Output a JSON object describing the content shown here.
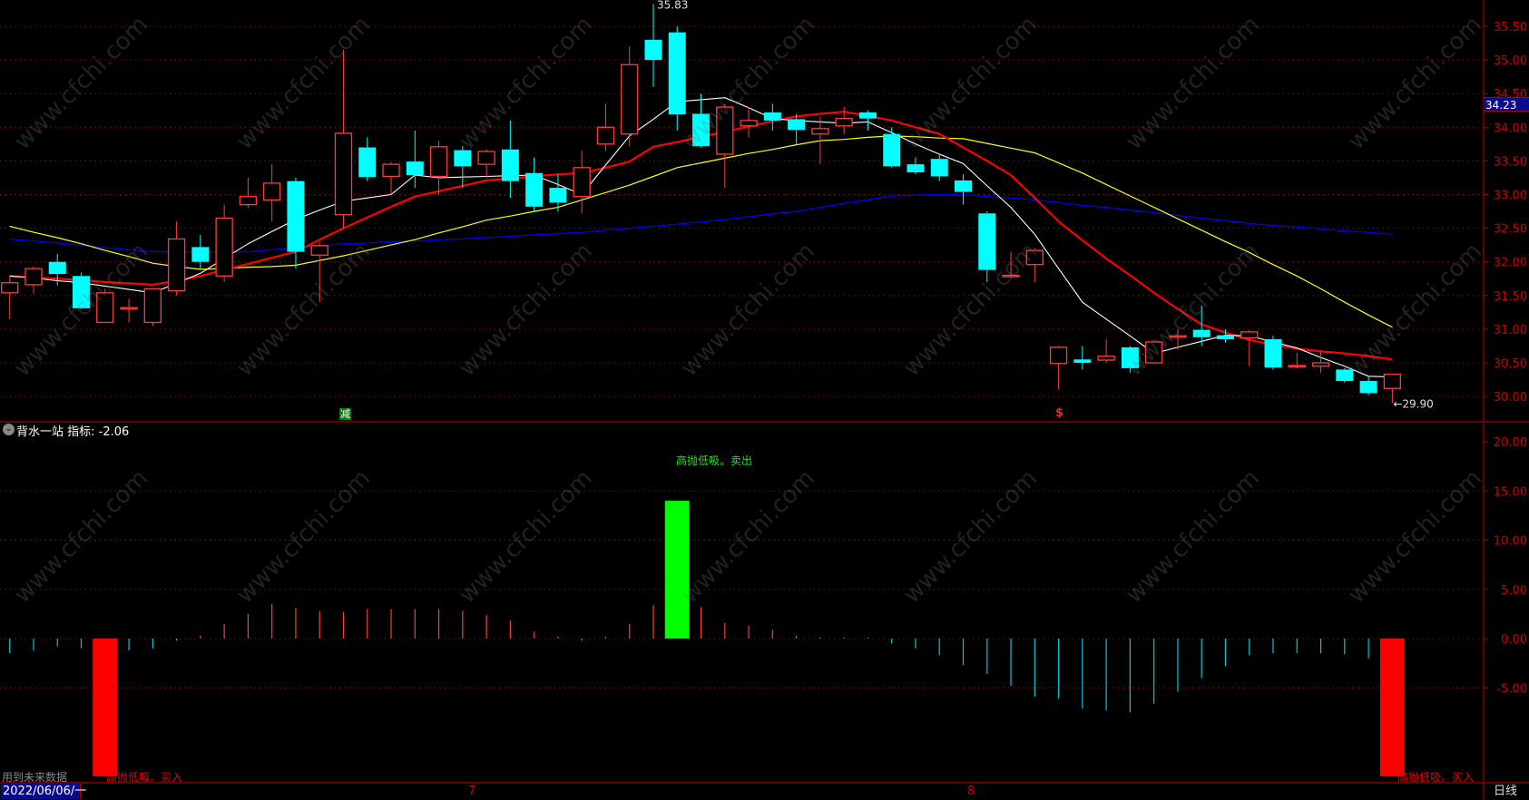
{
  "indicator_panel": {
    "name": "背水一站",
    "label": "指标:",
    "value": "-2.06",
    "title": "背水一站 指标: -2.06"
  },
  "watermark": "www.cfchi.com",
  "footer": {
    "date": "2022/06/06/一",
    "month_labels": [
      "7",
      "8"
    ],
    "period": "日线",
    "future_data_note": "用到未来数据"
  },
  "last_price": "34.23",
  "high_label": "35.83",
  "low_label": "←29.90",
  "markers": {
    "green_marker_text": "减",
    "red_marker_icon": "dollar-s-icon"
  },
  "signals": {
    "buy": "高抛低吸。买入",
    "sell": "高抛低吸。卖出"
  },
  "colors": {
    "up": "#ff3c3c",
    "down": "#00ffff",
    "ma5": "#ffffff",
    "ma10": "#ff0000",
    "ma20": "#ffff00",
    "ma60": "#0000ff",
    "axis": "#c80000",
    "buy_bar": "#ff0000",
    "sell_bar": "#00ff00",
    "neg_line": "#00c8d8"
  },
  "chart_data": [
    {
      "type": "candlestick",
      "ylim": [
        29.85,
        35.9
      ],
      "y_ticks": [
        "30.00",
        "30.50",
        "31.00",
        "31.50",
        "32.00",
        "32.50",
        "33.00",
        "33.50",
        "34.00",
        "34.50",
        "35.00",
        "35.50"
      ],
      "grid": true,
      "ohlc": [
        [
          31.54,
          31.8,
          31.15,
          31.69
        ],
        [
          31.66,
          31.93,
          31.53,
          31.9
        ],
        [
          32.0,
          32.12,
          31.65,
          31.82
        ],
        [
          31.79,
          31.84,
          31.3,
          31.31
        ],
        [
          31.1,
          31.6,
          31.1,
          31.54
        ],
        [
          31.3,
          31.45,
          31.1,
          31.32
        ],
        [
          31.1,
          31.6,
          31.05,
          31.6
        ],
        [
          31.57,
          32.6,
          31.5,
          32.34
        ],
        [
          32.22,
          32.4,
          31.9,
          32.0
        ],
        [
          31.79,
          32.85,
          31.7,
          32.65
        ],
        [
          32.85,
          33.25,
          32.8,
          32.97
        ],
        [
          32.92,
          33.45,
          32.6,
          33.17
        ],
        [
          33.2,
          33.25,
          31.9,
          32.15
        ],
        [
          32.1,
          32.3,
          31.4,
          32.24
        ],
        [
          32.7,
          35.15,
          32.5,
          33.91
        ],
        [
          33.7,
          33.85,
          33.2,
          33.26
        ],
        [
          33.27,
          33.48,
          33.0,
          33.45
        ],
        [
          33.49,
          33.95,
          33.1,
          33.29
        ],
        [
          33.27,
          33.8,
          33.0,
          33.71
        ],
        [
          33.66,
          33.72,
          33.1,
          33.42
        ],
        [
          33.45,
          33.67,
          33.25,
          33.64
        ],
        [
          33.67,
          34.1,
          32.95,
          33.2
        ],
        [
          33.32,
          33.55,
          32.75,
          32.82
        ],
        [
          33.1,
          33.3,
          32.75,
          32.88
        ],
        [
          32.97,
          33.65,
          32.72,
          33.4
        ],
        [
          33.75,
          34.35,
          33.65,
          34.0
        ],
        [
          33.9,
          35.2,
          33.72,
          34.93
        ],
        [
          35.3,
          35.83,
          34.6,
          35.0
        ],
        [
          35.41,
          35.5,
          33.95,
          34.19
        ],
        [
          34.2,
          34.5,
          33.7,
          33.72
        ],
        [
          33.6,
          34.35,
          33.1,
          34.3
        ],
        [
          34.02,
          34.3,
          33.85,
          34.1
        ],
        [
          34.22,
          34.35,
          33.95,
          34.1
        ],
        [
          34.12,
          34.2,
          33.75,
          33.96
        ],
        [
          33.9,
          34.15,
          33.45,
          33.98
        ],
        [
          34.02,
          34.3,
          33.9,
          34.13
        ],
        [
          34.22,
          34.25,
          33.95,
          34.13
        ],
        [
          33.9,
          34.0,
          33.4,
          33.42
        ],
        [
          33.45,
          33.55,
          33.3,
          33.33
        ],
        [
          33.53,
          33.6,
          33.2,
          33.27
        ],
        [
          33.21,
          33.3,
          32.85,
          33.04
        ],
        [
          32.72,
          32.75,
          31.7,
          31.88
        ],
        [
          31.78,
          32.15,
          31.75,
          31.8
        ],
        [
          31.96,
          32.2,
          31.7,
          32.17
        ],
        [
          30.49,
          30.75,
          30.1,
          30.73
        ],
        [
          30.55,
          30.75,
          30.4,
          30.5
        ],
        [
          30.54,
          30.85,
          30.5,
          30.6
        ],
        [
          30.73,
          30.75,
          30.35,
          30.42
        ],
        [
          30.5,
          30.84,
          30.48,
          30.81
        ],
        [
          30.88,
          31.0,
          30.7,
          30.9
        ],
        [
          30.99,
          31.35,
          30.75,
          30.88
        ],
        [
          30.91,
          31.0,
          30.8,
          30.85
        ],
        [
          30.87,
          30.98,
          30.45,
          30.96
        ],
        [
          30.85,
          30.9,
          30.4,
          30.43
        ],
        [
          30.44,
          30.65,
          30.42,
          30.46
        ],
        [
          30.45,
          30.68,
          30.35,
          30.5
        ],
        [
          30.4,
          30.42,
          30.2,
          30.23
        ],
        [
          30.23,
          30.3,
          30.02,
          30.05
        ],
        [
          30.12,
          30.34,
          29.9,
          30.33
        ]
      ],
      "ma": {
        "ma5": [
          31.79,
          31.76,
          31.72,
          31.69,
          31.64,
          31.59,
          31.54,
          31.68,
          31.83,
          32.05,
          32.27,
          32.45,
          32.63,
          32.77,
          32.9,
          32.95,
          33.0,
          33.29,
          33.25,
          33.26,
          33.27,
          33.28,
          33.29,
          33.15,
          33.0,
          33.44,
          33.87,
          34.12,
          34.38,
          34.41,
          34.44,
          34.29,
          34.13,
          34.1,
          34.08,
          34.06,
          34.08,
          33.92,
          33.75,
          33.6,
          33.46,
          33.13,
          32.81,
          32.41,
          31.9,
          31.4,
          31.15,
          30.9,
          30.64,
          30.73,
          30.82,
          30.91,
          30.9,
          30.81,
          30.72,
          30.58,
          30.45,
          30.3,
          30.29
        ],
        "ma10": [
          31.79,
          31.77,
          31.75,
          31.73,
          31.7,
          31.68,
          31.66,
          31.72,
          31.79,
          31.88,
          31.97,
          32.06,
          32.15,
          32.33,
          32.5,
          32.66,
          32.82,
          32.97,
          33.05,
          33.13,
          33.21,
          33.24,
          33.27,
          33.3,
          33.32,
          33.4,
          33.49,
          33.71,
          33.78,
          33.86,
          33.93,
          34.01,
          34.09,
          34.16,
          34.2,
          34.23,
          34.17,
          34.1,
          34.0,
          33.9,
          33.7,
          33.5,
          33.29,
          32.95,
          32.6,
          32.32,
          32.05,
          31.8,
          31.54,
          31.3,
          31.07,
          30.95,
          30.84,
          30.77,
          30.71,
          30.67,
          30.64,
          30.6,
          30.55
        ],
        "ma20": [
          32.53,
          32.44,
          32.36,
          32.27,
          32.17,
          32.08,
          31.98,
          31.93,
          31.89,
          31.9,
          31.92,
          31.93,
          31.95,
          32.02,
          32.09,
          32.17,
          32.25,
          32.33,
          32.43,
          32.52,
          32.62,
          32.68,
          32.75,
          32.81,
          32.92,
          33.03,
          33.14,
          33.27,
          33.4,
          33.47,
          33.54,
          33.61,
          33.67,
          33.74,
          33.8,
          33.82,
          33.85,
          33.87,
          33.86,
          33.84,
          33.83,
          33.76,
          33.69,
          33.62,
          33.47,
          33.32,
          33.15,
          32.98,
          32.81,
          32.64,
          32.47,
          32.3,
          32.14,
          31.96,
          31.79,
          31.6,
          31.4,
          31.21,
          31.03
        ],
        "ma60": [
          32.34,
          32.31,
          32.28,
          32.25,
          32.21,
          32.18,
          32.15,
          32.15,
          32.15,
          32.15,
          32.15,
          32.18,
          32.21,
          32.24,
          32.27,
          32.28,
          32.3,
          32.31,
          32.33,
          32.34,
          32.36,
          32.38,
          32.4,
          32.42,
          32.44,
          32.47,
          32.5,
          32.53,
          32.56,
          32.59,
          32.63,
          32.67,
          32.71,
          32.75,
          32.81,
          32.87,
          32.92,
          32.98,
          32.99,
          33.0,
          33.0,
          32.97,
          32.95,
          32.92,
          32.88,
          32.84,
          32.81,
          32.77,
          32.73,
          32.69,
          32.65,
          32.61,
          32.57,
          32.54,
          32.52,
          32.49,
          32.46,
          32.44,
          32.41
        ]
      }
    },
    {
      "type": "bar",
      "ylim": [
        -14.5,
        22
      ],
      "y_ticks": [
        "20.00",
        "15.00",
        "10.00",
        "5.00",
        "0.00",
        "-5.00"
      ],
      "grid": true,
      "values": [
        -1.5,
        -1.2,
        -0.8,
        -1.0,
        -14.0,
        -1.2,
        -1.0,
        -0.2,
        0.3,
        1.5,
        2.5,
        3.5,
        3.1,
        2.8,
        2.7,
        3.0,
        3.0,
        3.0,
        3.0,
        2.8,
        2.4,
        1.8,
        0.7,
        0.2,
        -0.2,
        0.2,
        1.5,
        3.4,
        14.0,
        3.2,
        1.6,
        1.3,
        0.9,
        0.3,
        0.1,
        0.1,
        0.1,
        -0.5,
        -1.0,
        -1.7,
        -2.7,
        -3.6,
        -4.8,
        -5.9,
        -6.1,
        -7.1,
        -7.3,
        -7.5,
        -6.6,
        -5.4,
        -4.0,
        -2.8,
        -1.7,
        -1.5,
        -1.5,
        -1.5,
        -1.6,
        -2.0,
        -14.0
      ],
      "signal_bars": {
        "buy": [
          4,
          58
        ],
        "sell": [
          28
        ]
      }
    }
  ]
}
